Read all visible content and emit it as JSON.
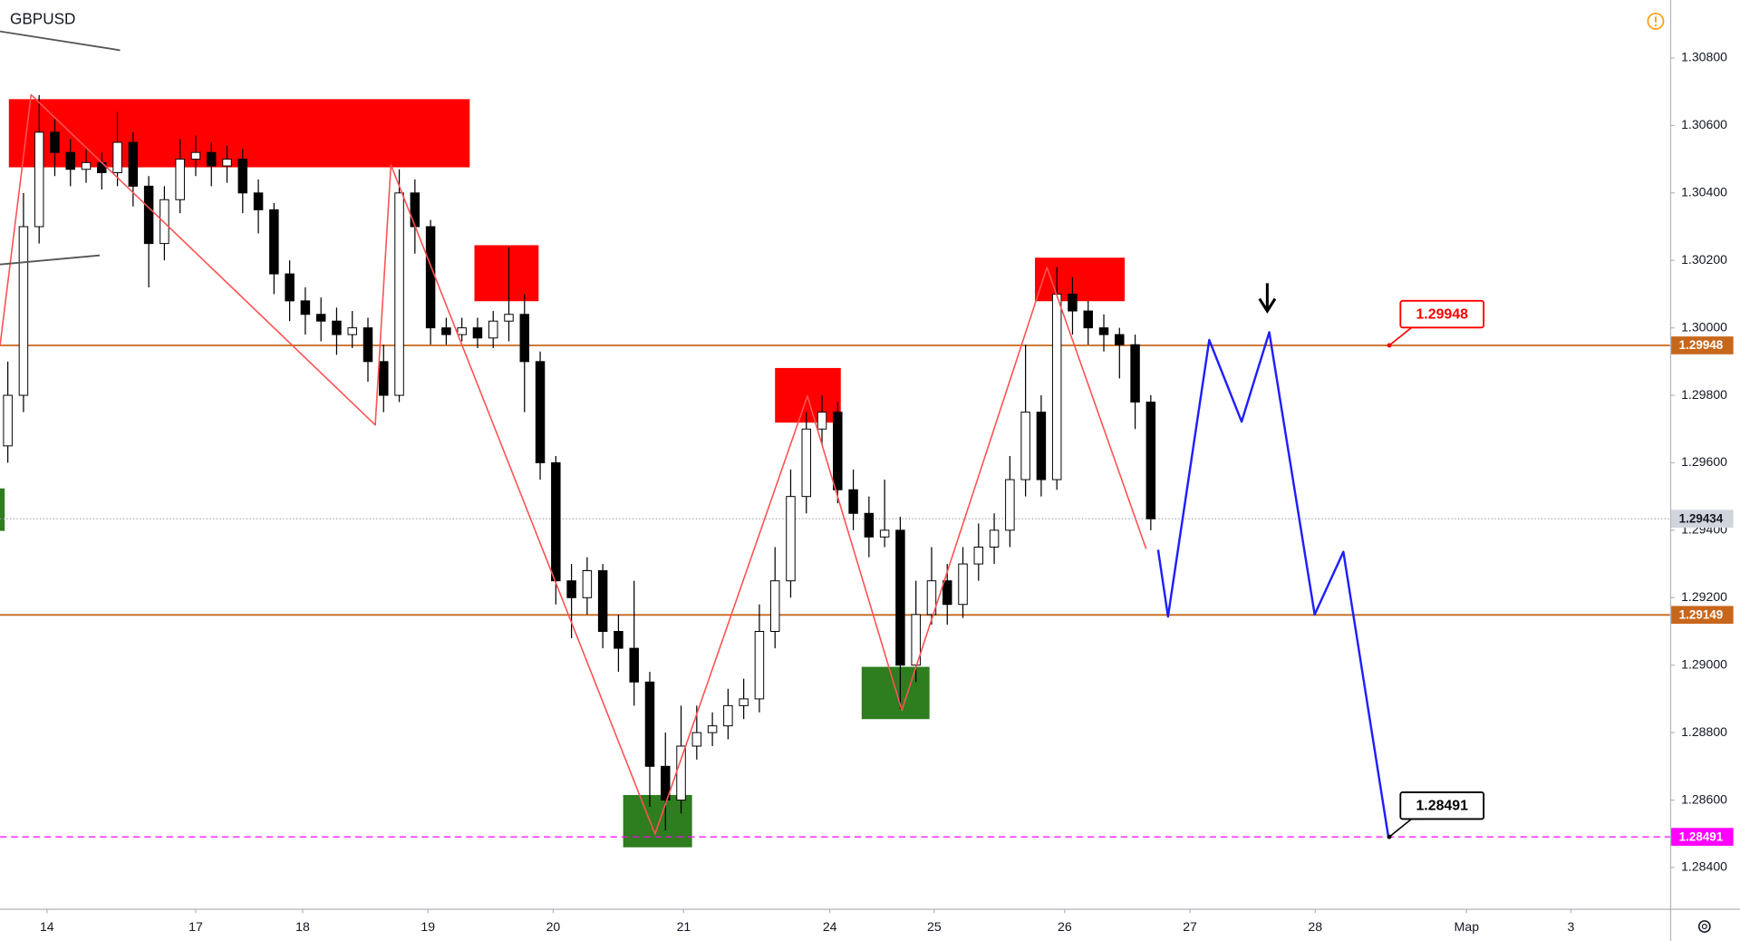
{
  "chart_data": {
    "type": "candlestick",
    "title": "GBPUSD",
    "xlim": [
      0,
      320
    ],
    "ylim": [
      1.28278,
      1.30972
    ],
    "xticks": [
      {
        "value": 9,
        "label": "14"
      },
      {
        "value": 37.5,
        "label": "17"
      },
      {
        "value": 58,
        "label": "18"
      },
      {
        "value": 82,
        "label": "19"
      },
      {
        "value": 106,
        "label": "20"
      },
      {
        "value": 131,
        "label": "21"
      },
      {
        "value": 159,
        "label": "24"
      },
      {
        "value": 179,
        "label": "25"
      },
      {
        "value": 204,
        "label": "26"
      },
      {
        "value": 228,
        "label": "27"
      },
      {
        "value": 252,
        "label": "28"
      },
      {
        "value": 281,
        "label": "Мар"
      },
      {
        "value": 301,
        "label": "3"
      }
    ],
    "yticks": [
      {
        "value": 1.284,
        "label": "1.28400"
      },
      {
        "value": 1.286,
        "label": "1.28600"
      },
      {
        "value": 1.288,
        "label": "1.28800"
      },
      {
        "value": 1.29,
        "label": "1.29000"
      },
      {
        "value": 1.292,
        "label": "1.29200"
      },
      {
        "value": 1.294,
        "label": "1.29400"
      },
      {
        "value": 1.296,
        "label": "1.29600"
      },
      {
        "value": 1.298,
        "label": "1.29800"
      },
      {
        "value": 1.3,
        "label": "1.30000"
      },
      {
        "value": 1.302,
        "label": "1.30200"
      },
      {
        "value": 1.304,
        "label": "1.30400"
      },
      {
        "value": 1.306,
        "label": "1.30600"
      },
      {
        "value": 1.308,
        "label": "1.30800"
      }
    ],
    "up_color": "#ffffff",
    "down_color": "#000000",
    "x": [
      1.5,
      4.5,
      7.5,
      10.5,
      13.5,
      16.5,
      19.5,
      22.5,
      25.5,
      28.5,
      31.5,
      34.5,
      37.5,
      40.5,
      43.5,
      46.5,
      49.5,
      52.5,
      55.5,
      58.5,
      61.5,
      64.5,
      67.5,
      70.5,
      73.5,
      76.5,
      79.5,
      82.5,
      85.5,
      88.5,
      91.5,
      94.5,
      97.5,
      100.5,
      103.5,
      106.5,
      109.5,
      112.5,
      115.5,
      118.5,
      121.5,
      124.5,
      127.5,
      130.5,
      133.5,
      136.5,
      139.5,
      142.5,
      145.5,
      148.5,
      151.5,
      154.5,
      157.5,
      160.5,
      163.5,
      166.5,
      169.5,
      172.5,
      175.5,
      178.5,
      181.5,
      184.5,
      187.5,
      190.5,
      193.5,
      196.5,
      199.5,
      202.5,
      205.5,
      208.5,
      211.5,
      214.5,
      217.5,
      220.5
    ],
    "open": [
      1.2965,
      1.298,
      1.303,
      1.3058,
      1.3052,
      1.3047,
      1.3049,
      1.3046,
      1.3055,
      1.3042,
      1.3025,
      1.3038,
      1.305,
      1.3052,
      1.3048,
      1.305,
      1.304,
      1.3035,
      1.3016,
      1.3008,
      1.3004,
      1.3002,
      1.2998,
      1.3,
      1.299,
      1.298,
      1.304,
      1.303,
      1.3,
      1.2998,
      1.3,
      1.2997,
      1.3002,
      1.3004,
      1.299,
      1.296,
      1.2925,
      1.292,
      1.2928,
      1.291,
      1.2905,
      1.2895,
      1.287,
      1.286,
      1.2876,
      1.288,
      1.2882,
      1.2888,
      1.289,
      1.291,
      1.2925,
      1.295,
      1.297,
      1.2975,
      1.2952,
      1.2945,
      1.2938,
      1.294,
      1.29,
      1.2915,
      1.2925,
      1.2918,
      1.293,
      1.2935,
      1.294,
      1.2955,
      1.2975,
      1.2955,
      1.301,
      1.3005,
      1.3,
      1.2998,
      1.2995,
      1.2978
    ],
    "high": [
      1.299,
      1.304,
      1.3069,
      1.3062,
      1.3056,
      1.3053,
      1.3052,
      1.3064,
      1.3058,
      1.3045,
      1.3042,
      1.3056,
      1.3057,
      1.3055,
      1.3054,
      1.3053,
      1.3044,
      1.3037,
      1.302,
      1.3012,
      1.3009,
      1.3006,
      1.3005,
      1.3003,
      1.2995,
      1.3047,
      1.3044,
      1.3032,
      1.3003,
      1.3003,
      1.3003,
      1.3005,
      1.3024,
      1.301,
      1.2993,
      1.2962,
      1.293,
      1.2932,
      1.293,
      1.2915,
      1.2925,
      1.2898,
      1.288,
      1.2888,
      1.2888,
      1.2886,
      1.2893,
      1.2896,
      1.2918,
      1.2935,
      1.2958,
      1.2975,
      1.298,
      1.2978,
      1.2958,
      1.295,
      1.2955,
      1.2944,
      1.2925,
      1.2935,
      1.293,
      1.2935,
      1.2942,
      1.2945,
      1.2962,
      1.2995,
      1.298,
      1.3018,
      1.3015,
      1.3008,
      1.3004,
      1.3,
      1.2998,
      1.298
    ],
    "low": [
      1.296,
      1.2975,
      1.3025,
      1.3045,
      1.3042,
      1.3043,
      1.3041,
      1.3042,
      1.3036,
      1.3012,
      1.302,
      1.3034,
      1.3045,
      1.3042,
      1.3043,
      1.3034,
      1.3028,
      1.301,
      1.3002,
      1.2998,
      1.2996,
      1.2992,
      1.2994,
      1.2984,
      1.2975,
      1.2978,
      1.3022,
      1.2995,
      1.2995,
      1.2996,
      1.2994,
      1.2994,
      1.2996,
      1.2975,
      1.2955,
      1.2918,
      1.2908,
      1.2915,
      1.2905,
      1.2898,
      1.2888,
      1.2858,
      1.2851,
      1.2856,
      1.2872,
      1.2876,
      1.2878,
      1.2884,
      1.2886,
      1.2905,
      1.292,
      1.2945,
      1.2965,
      1.2948,
      1.294,
      1.2932,
      1.2935,
      1.2887,
      1.2895,
      1.2912,
      1.2912,
      1.2914,
      1.2925,
      1.293,
      1.2935,
      1.295,
      1.295,
      1.2952,
      1.2998,
      1.2995,
      1.2993,
      1.2985,
      1.297,
      1.294
    ],
    "close": [
      1.298,
      1.303,
      1.3058,
      1.3052,
      1.3047,
      1.3049,
      1.3046,
      1.3055,
      1.3042,
      1.3025,
      1.3038,
      1.305,
      1.3052,
      1.3048,
      1.305,
      1.304,
      1.3035,
      1.3016,
      1.3008,
      1.3004,
      1.3002,
      1.2998,
      1.3,
      1.299,
      1.298,
      1.304,
      1.303,
      1.3,
      1.2998,
      1.3,
      1.2997,
      1.3002,
      1.3004,
      1.299,
      1.296,
      1.2925,
      1.292,
      1.2928,
      1.291,
      1.2905,
      1.2895,
      1.287,
      1.286,
      1.2876,
      1.288,
      1.2882,
      1.2888,
      1.289,
      1.291,
      1.2925,
      1.295,
      1.297,
      1.2975,
      1.2952,
      1.2945,
      1.2938,
      1.294,
      1.29,
      1.2915,
      1.2925,
      1.2918,
      1.293,
      1.2935,
      1.294,
      1.2955,
      1.2975,
      1.2955,
      1.301,
      1.3005,
      1.3,
      1.2998,
      1.2995,
      1.2978,
      1.29434
    ],
    "zones": [
      {
        "color": "#ff0000",
        "x": [
          1.7,
          90
        ],
        "y": [
          1.30476,
          1.30678
        ]
      },
      {
        "color": "#ff0000",
        "x": [
          90.9,
          103.2
        ],
        "y": [
          1.30079,
          1.30245
        ]
      },
      {
        "color": "#ff0000",
        "x": [
          148.5,
          161.1
        ],
        "y": [
          1.29719,
          1.29881
        ]
      },
      {
        "color": "#ff0000",
        "x": [
          198.3,
          215.5
        ],
        "y": [
          1.30079,
          1.30208
        ]
      },
      {
        "color": "#2e7d1e",
        "x": [
          0,
          0.9
        ],
        "y": [
          1.29398,
          1.29524
        ]
      },
      {
        "color": "#2e7d1e",
        "x": [
          119.4,
          132.6
        ],
        "y": [
          1.2846,
          1.28615
        ]
      },
      {
        "color": "#2e7d1e",
        "x": [
          165.1,
          178.1
        ],
        "y": [
          1.2884,
          1.28995
        ]
      }
    ],
    "lines": [
      {
        "color": "#ff5252",
        "width": 1.3,
        "x": [
          0,
          5.96,
          71.9,
          74.9,
          125.5,
          154.7,
          172.8,
          200.6,
          219.6
        ],
        "y": [
          1.29947,
          1.30691,
          1.29712,
          1.30483,
          1.28499,
          1.29798,
          1.28866,
          1.30179,
          1.29345
        ]
      },
      {
        "color": "#1f1fff",
        "width": 2,
        "x": [
          221.9,
          223.8,
          231.7,
          237.9,
          243.2,
          251.9,
          257.4,
          266.0
        ],
        "y": [
          1.29342,
          1.29144,
          1.29964,
          1.29722,
          1.29987,
          1.2915,
          1.29336,
          1.28493
        ]
      },
      {
        "color": "#555555",
        "width": 1.5,
        "x": [
          0,
          23
        ],
        "y": [
          1.30879,
          1.30823
        ]
      },
      {
        "color": "#555555",
        "width": 1.5,
        "x": [
          0,
          19.1
        ],
        "y": [
          1.30188,
          1.30215
        ]
      }
    ],
    "levels": [
      {
        "value": 1.29948,
        "color": "#c7671c",
        "style": "solid"
      },
      {
        "value": 1.29434,
        "color": "#9e9e9e",
        "style": "dotted"
      },
      {
        "value": 1.29149,
        "color": "#c7671c",
        "style": "solid"
      },
      {
        "value": 1.28491,
        "color": "#ff00ff",
        "style": "dashed"
      }
    ]
  }
}
